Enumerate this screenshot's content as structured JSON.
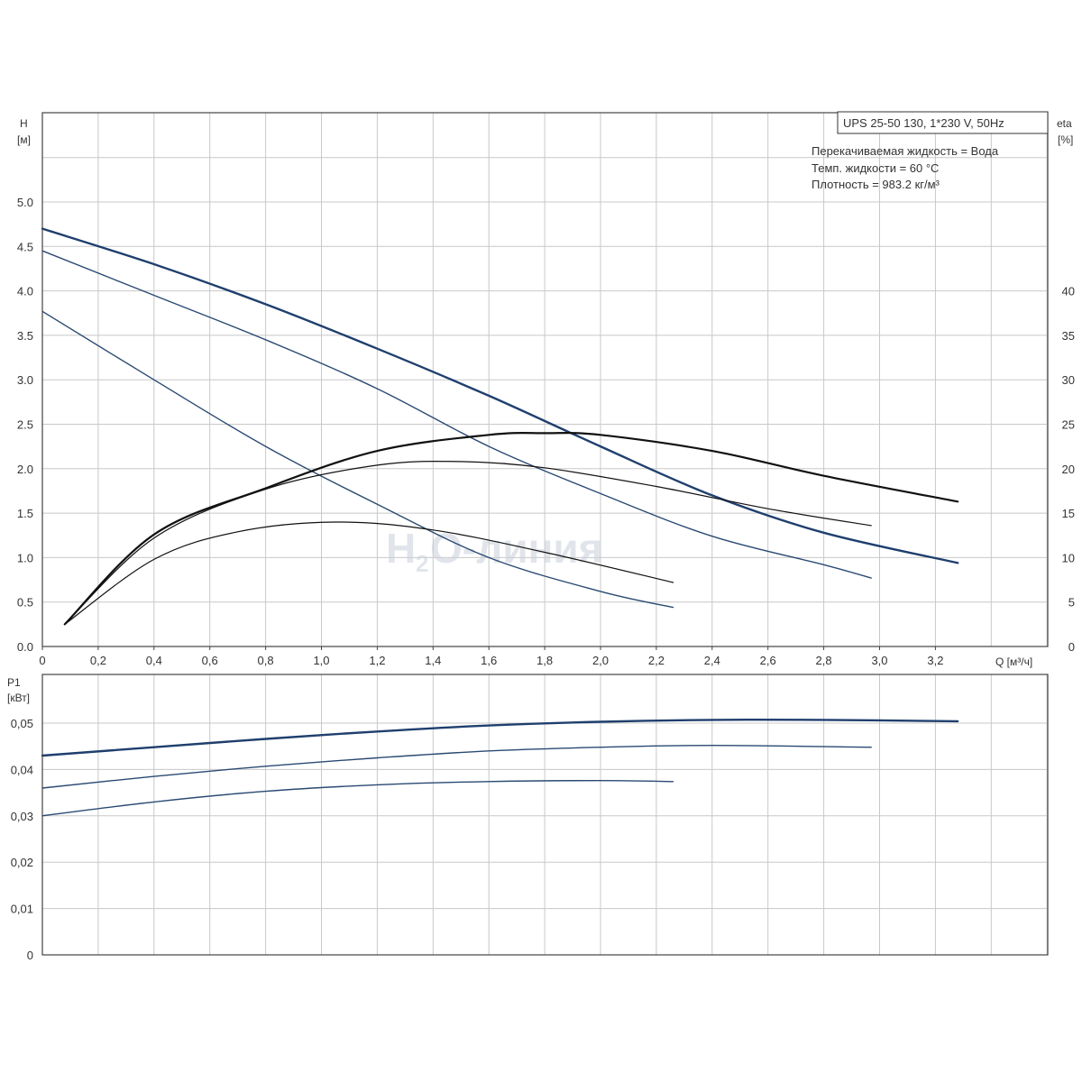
{
  "chart_data": [
    {
      "type": "line",
      "title": "UPS 25-50 130, 1*230 V, 50Hz",
      "info_lines": [
        "Перекачиваемая жидкость = Вода",
        "Темп. жидкости = 60 °C",
        "Плотность = 983.2 кг/м³"
      ],
      "ylabel": [
        "H",
        "[м]"
      ],
      "y2label": [
        "eta",
        "[%]"
      ],
      "xlabel": "Q [м³/ч]",
      "xlim": [
        0,
        3.6
      ],
      "ylim": [
        0,
        6
      ],
      "y2lim": [
        0,
        60
      ],
      "grid": true,
      "x_ticks": [
        "0",
        "0,2",
        "0,4",
        "0,6",
        "0,8",
        "1,0",
        "1,2",
        "1,4",
        "1,6",
        "1,8",
        "2,0",
        "2,2",
        "2,4",
        "2,6",
        "2,8",
        "3,0",
        "3,2"
      ],
      "y_ticks": [
        "0.0",
        "0.5",
        "1.0",
        "1.5",
        "2.0",
        "2.5",
        "3.0",
        "3.5",
        "4.0",
        "4.5",
        "5.0"
      ],
      "y2_ticks": [
        "0",
        "5",
        "10",
        "15",
        "20",
        "25",
        "30",
        "35",
        "40"
      ],
      "series": [
        {
          "kind": "head",
          "color": "#1f3f6e",
          "width": 2.4,
          "x": [
            0,
            0.4,
            0.8,
            1.2,
            1.6,
            2.0,
            2.4,
            2.8,
            3.28
          ],
          "values": [
            4.7,
            4.3,
            3.85,
            3.35,
            2.82,
            2.25,
            1.7,
            1.28,
            0.94
          ]
        },
        {
          "kind": "head",
          "color": "#2a4a72",
          "width": 1.4,
          "x": [
            0,
            0.4,
            0.8,
            1.2,
            1.6,
            2.0,
            2.4,
            2.8,
            2.97
          ],
          "values": [
            4.45,
            3.95,
            3.45,
            2.9,
            2.25,
            1.72,
            1.24,
            0.92,
            0.77
          ]
        },
        {
          "kind": "head",
          "color": "#2a4a72",
          "width": 1.4,
          "x": [
            0,
            0.4,
            0.8,
            1.2,
            1.6,
            2.0,
            2.26
          ],
          "values": [
            3.77,
            3.0,
            2.25,
            1.6,
            1.0,
            0.62,
            0.44
          ]
        },
        {
          "kind": "eta",
          "color": "#111111",
          "width": 2.2,
          "x": [
            0.08,
            0.4,
            0.8,
            1.2,
            1.6,
            1.8,
            2.0,
            2.4,
            2.8,
            3.28
          ],
          "values": [
            2.5,
            12.6,
            17.8,
            22.0,
            23.8,
            24.0,
            23.8,
            22.0,
            19.2,
            16.3
          ]
        },
        {
          "kind": "eta",
          "color": "#111111",
          "width": 1.2,
          "x": [
            0.08,
            0.4,
            0.8,
            1.2,
            1.5,
            1.8,
            2.2,
            2.6,
            2.97
          ],
          "values": [
            2.5,
            12.2,
            17.7,
            20.4,
            20.8,
            20.1,
            18.0,
            15.5,
            13.6
          ]
        },
        {
          "kind": "eta",
          "color": "#111111",
          "width": 1.2,
          "x": [
            0.08,
            0.4,
            0.7,
            1.05,
            1.4,
            1.8,
            2.26
          ],
          "values": [
            2.5,
            9.8,
            12.9,
            14.0,
            13.1,
            10.6,
            7.2
          ]
        }
      ]
    },
    {
      "type": "line",
      "ylabel": [
        "P1",
        "[кВт]"
      ],
      "xlim": [
        0,
        3.6
      ],
      "ylim": [
        0,
        0.06
      ],
      "grid": true,
      "y_ticks": [
        "0",
        "0,01",
        "0,02",
        "0,03",
        "0,04",
        "0,05"
      ],
      "series": [
        {
          "color": "#1f3f6e",
          "width": 2.4,
          "x": [
            0,
            0.4,
            0.8,
            1.2,
            1.6,
            2.0,
            2.4,
            2.8,
            3.28
          ],
          "values": [
            0.043,
            0.0448,
            0.0466,
            0.0482,
            0.0495,
            0.0503,
            0.0507,
            0.0507,
            0.0504
          ]
        },
        {
          "color": "#2a4a72",
          "width": 1.4,
          "x": [
            0,
            0.4,
            0.8,
            1.2,
            1.6,
            2.0,
            2.4,
            2.97
          ],
          "values": [
            0.036,
            0.0385,
            0.0407,
            0.0425,
            0.044,
            0.0448,
            0.0452,
            0.0448
          ]
        },
        {
          "color": "#2a4a72",
          "width": 1.4,
          "x": [
            0,
            0.4,
            0.8,
            1.2,
            1.6,
            2.0,
            2.26
          ],
          "values": [
            0.03,
            0.033,
            0.0353,
            0.0367,
            0.0374,
            0.0376,
            0.0374
          ]
        }
      ]
    }
  ],
  "watermark": {
    "h": "H",
    "sub": "2",
    "rest": "O-линия"
  }
}
